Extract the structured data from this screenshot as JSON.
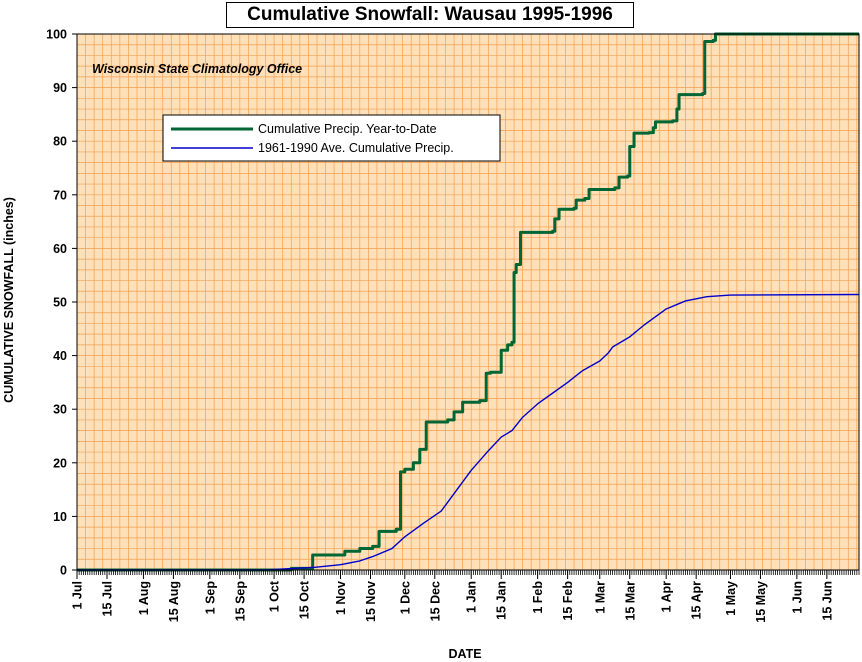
{
  "chart_data": {
    "type": "line",
    "title": "Cumulative Snowfall: Wausau 1995-1996",
    "source_note": "Wisconsin State Climatology Office",
    "xlabel": "DATE",
    "ylabel": "CUMULATIVE SNOWFALL (inches)",
    "ylim": [
      0,
      100
    ],
    "yticks": [
      "0",
      "10",
      "20",
      "30",
      "40",
      "50",
      "60",
      "70",
      "80",
      "90",
      "100"
    ],
    "x_domain": [
      "1995-07-01",
      "1996-06-30"
    ],
    "xticks": [
      {
        "label": "1 Jul",
        "date": "1995-07-01"
      },
      {
        "label": "15 Jul",
        "date": "1995-07-15"
      },
      {
        "label": "1 Aug",
        "date": "1995-08-01"
      },
      {
        "label": "15 Aug",
        "date": "1995-08-15"
      },
      {
        "label": "1 Sep",
        "date": "1995-09-01"
      },
      {
        "label": "15 Sep",
        "date": "1995-09-15"
      },
      {
        "label": "1 Oct",
        "date": "1995-10-01"
      },
      {
        "label": "15 Oct",
        "date": "1995-10-15"
      },
      {
        "label": "1 Nov",
        "date": "1995-11-01"
      },
      {
        "label": "15 Nov",
        "date": "1995-11-15"
      },
      {
        "label": "1 Dec",
        "date": "1995-12-01"
      },
      {
        "label": "15 Dec",
        "date": "1995-12-15"
      },
      {
        "label": "1 Jan",
        "date": "1996-01-01"
      },
      {
        "label": "15 Jan",
        "date": "1996-01-15"
      },
      {
        "label": "1 Feb",
        "date": "1996-02-01"
      },
      {
        "label": "15 Feb",
        "date": "1996-02-15"
      },
      {
        "label": "1 Mar",
        "date": "1996-03-01"
      },
      {
        "label": "15 Mar",
        "date": "1996-03-15"
      },
      {
        "label": "1 Apr",
        "date": "1996-04-01"
      },
      {
        "label": "15 Apr",
        "date": "1996-04-15"
      },
      {
        "label": "1 May",
        "date": "1996-05-01"
      },
      {
        "label": "15 May",
        "date": "1996-05-15"
      },
      {
        "label": "1 Jun",
        "date": "1996-06-01"
      },
      {
        "label": "15 Jun",
        "date": "1996-06-15"
      }
    ],
    "grid": true,
    "legend_position": "upper-left",
    "series": [
      {
        "name": "Cumulative Precip. Year-to-Date",
        "color": "#006633",
        "step": true,
        "points": [
          [
            "1995-07-01",
            0
          ],
          [
            "1995-10-08",
            0
          ],
          [
            "1995-10-09",
            0.3
          ],
          [
            "1995-10-18",
            0.3
          ],
          [
            "1995-10-19",
            2.8
          ],
          [
            "1995-11-02",
            2.8
          ],
          [
            "1995-11-03",
            3.5
          ],
          [
            "1995-11-09",
            3.5
          ],
          [
            "1995-11-10",
            4.0
          ],
          [
            "1995-11-15",
            4.0
          ],
          [
            "1995-11-16",
            4.4
          ],
          [
            "1995-11-18",
            4.4
          ],
          [
            "1995-11-19",
            7.2
          ],
          [
            "1995-11-26",
            7.2
          ],
          [
            "1995-11-27",
            7.6
          ],
          [
            "1995-11-28",
            7.6
          ],
          [
            "1995-11-29",
            18.3
          ],
          [
            "1995-12-01",
            18.8
          ],
          [
            "1995-12-04",
            18.8
          ],
          [
            "1995-12-05",
            20.0
          ],
          [
            "1995-12-07",
            20.0
          ],
          [
            "1995-12-08",
            22.5
          ],
          [
            "1995-12-10",
            22.5
          ],
          [
            "1995-12-11",
            27.6
          ],
          [
            "1995-12-20",
            27.6
          ],
          [
            "1995-12-21",
            28.0
          ],
          [
            "1995-12-23",
            28.0
          ],
          [
            "1995-12-24",
            29.5
          ],
          [
            "1995-12-27",
            29.5
          ],
          [
            "1995-12-28",
            31.3
          ],
          [
            "1996-01-04",
            31.3
          ],
          [
            "1996-01-05",
            31.6
          ],
          [
            "1996-01-07",
            31.6
          ],
          [
            "1996-01-08",
            36.7
          ],
          [
            "1996-01-10",
            36.9
          ],
          [
            "1996-01-14",
            36.9
          ],
          [
            "1996-01-15",
            41.0
          ],
          [
            "1996-01-17",
            41.0
          ],
          [
            "1996-01-18",
            42.0
          ],
          [
            "1996-01-20",
            42.5
          ],
          [
            "1996-01-21",
            55.5
          ],
          [
            "1996-01-22",
            57.0
          ],
          [
            "1996-01-24",
            63.0
          ],
          [
            "1996-02-08",
            63.2
          ],
          [
            "1996-02-09",
            65.5
          ],
          [
            "1996-02-11",
            67.3
          ],
          [
            "1996-02-18",
            67.5
          ],
          [
            "1996-02-19",
            69.0
          ],
          [
            "1996-02-23",
            69.3
          ],
          [
            "1996-02-25",
            71.0
          ],
          [
            "1996-03-08",
            71.3
          ],
          [
            "1996-03-10",
            73.3
          ],
          [
            "1996-03-14",
            73.5
          ],
          [
            "1996-03-15",
            79.0
          ],
          [
            "1996-03-17",
            81.5
          ],
          [
            "1996-03-24",
            81.6
          ],
          [
            "1996-03-26",
            82.5
          ],
          [
            "1996-03-27",
            83.6
          ],
          [
            "1996-04-04",
            83.8
          ],
          [
            "1996-04-06",
            86.0
          ],
          [
            "1996-04-07",
            88.7
          ],
          [
            "1996-04-18",
            88.9
          ],
          [
            "1996-04-19",
            98.6
          ],
          [
            "1996-04-23",
            98.8
          ],
          [
            "1996-04-24",
            100.0
          ],
          [
            "1996-06-30",
            100.0
          ]
        ]
      },
      {
        "name": "1961-1990 Ave. Cumulative Precip.",
        "color": "#0000cc",
        "step": false,
        "points": [
          [
            "1995-07-01",
            0
          ],
          [
            "1995-09-28",
            0
          ],
          [
            "1995-10-01",
            0.1
          ],
          [
            "1995-10-10",
            0.3
          ],
          [
            "1995-10-20",
            0.5
          ],
          [
            "1995-11-01",
            1.0
          ],
          [
            "1995-11-10",
            1.7
          ],
          [
            "1995-11-16",
            2.5
          ],
          [
            "1995-11-25",
            4.0
          ],
          [
            "1995-12-01",
            6.2
          ],
          [
            "1995-12-10",
            8.8
          ],
          [
            "1995-12-18",
            11.0
          ],
          [
            "1995-12-25",
            14.8
          ],
          [
            "1996-01-01",
            18.6
          ],
          [
            "1996-01-08",
            21.8
          ],
          [
            "1996-01-15",
            24.8
          ],
          [
            "1996-01-20",
            26.0
          ],
          [
            "1996-01-25",
            28.5
          ],
          [
            "1996-02-01",
            31.0
          ],
          [
            "1996-02-08",
            33.0
          ],
          [
            "1996-02-15",
            35.0
          ],
          [
            "1996-02-22",
            37.2
          ],
          [
            "1996-03-01",
            39.0
          ],
          [
            "1996-03-05",
            40.5
          ],
          [
            "1996-03-07",
            41.6
          ],
          [
            "1996-03-15",
            43.5
          ],
          [
            "1996-03-22",
            45.8
          ],
          [
            "1996-04-01",
            48.7
          ],
          [
            "1996-04-10",
            50.2
          ],
          [
            "1996-04-20",
            51.0
          ],
          [
            "1996-05-01",
            51.3
          ],
          [
            "1996-06-30",
            51.4
          ]
        ]
      }
    ]
  }
}
